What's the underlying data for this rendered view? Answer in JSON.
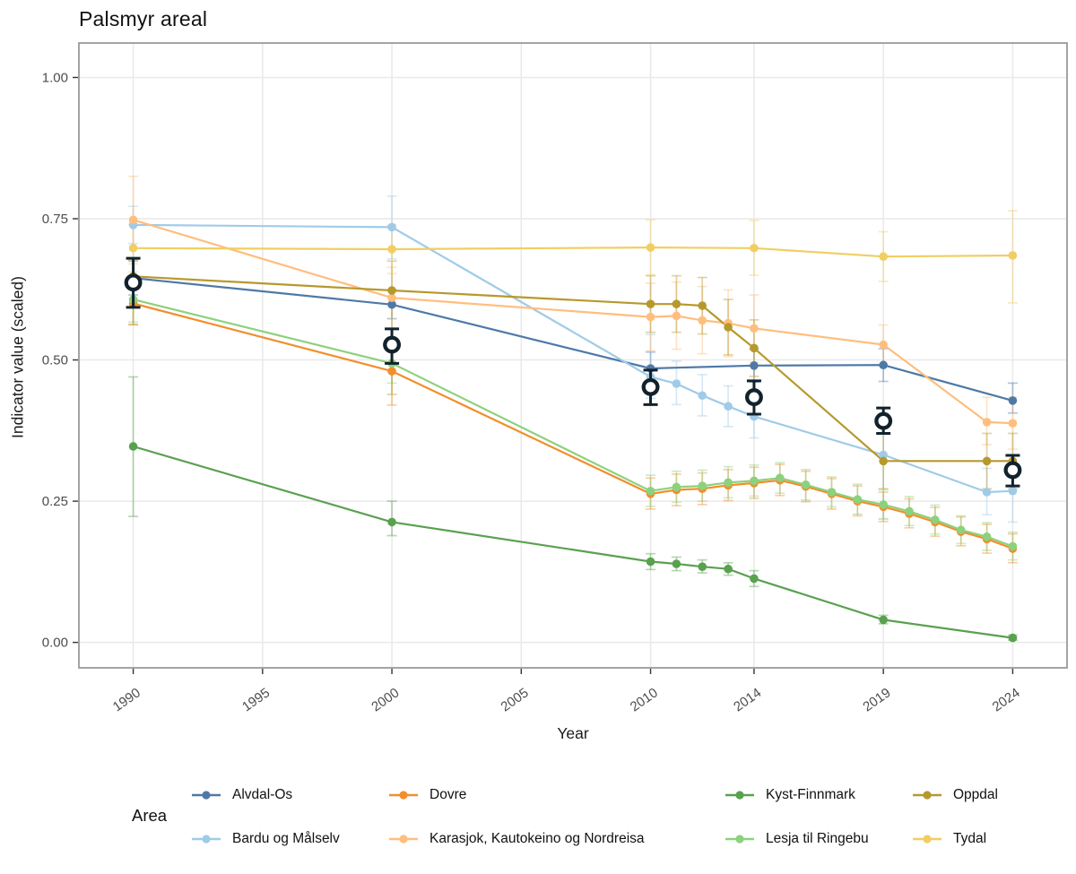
{
  "title": "Palsmyr areal",
  "chart_data": {
    "type": "line",
    "title": "Palsmyr areal",
    "xlabel": "Year",
    "ylabel": "Indicator value (scaled)",
    "legend_title": "Area",
    "legend_position": "bottom",
    "grid": true,
    "xlim": [
      1987.9,
      2026.1
    ],
    "ylim": [
      -0.045,
      1.061
    ],
    "x_tick_values": [
      1990,
      1995,
      2000,
      2005,
      2010,
      2014,
      2019,
      2024
    ],
    "x_tick_labels": [
      "1990",
      "1995",
      "2000",
      "2005",
      "2010",
      "2014",
      "2019",
      "2024"
    ],
    "y_tick_values": [
      0.0,
      0.25,
      0.5,
      0.75,
      1.0
    ],
    "y_tick_labels": [
      "0.00",
      "0.25",
      "0.50",
      "0.75",
      "1.00"
    ],
    "point_format": [
      "year",
      "value",
      "ci_low",
      "ci_high"
    ],
    "series": [
      {
        "name": "Alvdal-Os",
        "color": "#4E79A7",
        "points": [
          [
            1990,
            0.645,
            0.615,
            0.675
          ],
          [
            2000,
            0.598,
            0.573,
            0.624
          ],
          [
            2010,
            0.485,
            0.456,
            0.514
          ],
          [
            2014,
            0.49,
            0.461,
            0.519
          ],
          [
            2019,
            0.491,
            0.462,
            0.52
          ],
          [
            2024,
            0.428,
            0.406,
            0.459
          ]
        ]
      },
      {
        "name": "Bardu og Målselv",
        "color": "#A0CBE8",
        "points": [
          [
            1990,
            0.739,
            0.706,
            0.772
          ],
          [
            2000,
            0.735,
            0.679,
            0.79
          ],
          [
            2010,
            0.47,
            0.432,
            0.545
          ],
          [
            2011,
            0.458,
            0.421,
            0.498
          ],
          [
            2012,
            0.437,
            0.401,
            0.474
          ],
          [
            2013,
            0.418,
            0.382,
            0.454
          ],
          [
            2014,
            0.4,
            0.362,
            0.438
          ],
          [
            2019,
            0.332,
            0.218,
            0.392
          ],
          [
            2023,
            0.266,
            0.226,
            0.308
          ],
          [
            2024,
            0.268,
            0.213,
            0.316
          ]
        ]
      },
      {
        "name": "Dovre",
        "color": "#F28E2B",
        "points": [
          [
            1990,
            0.6,
            0.562,
            0.638
          ],
          [
            2000,
            0.48,
            0.42,
            0.54
          ],
          [
            2010,
            0.263,
            0.236,
            0.291
          ],
          [
            2011,
            0.27,
            0.242,
            0.298
          ],
          [
            2012,
            0.272,
            0.244,
            0.3
          ],
          [
            2013,
            0.278,
            0.251,
            0.306
          ],
          [
            2014,
            0.282,
            0.255,
            0.31
          ],
          [
            2015,
            0.287,
            0.26,
            0.315
          ],
          [
            2016,
            0.276,
            0.249,
            0.303
          ],
          [
            2017,
            0.263,
            0.236,
            0.29
          ],
          [
            2018,
            0.25,
            0.224,
            0.277
          ],
          [
            2019,
            0.24,
            0.214,
            0.266
          ],
          [
            2020,
            0.228,
            0.203,
            0.254
          ],
          [
            2021,
            0.213,
            0.188,
            0.239
          ],
          [
            2022,
            0.196,
            0.171,
            0.222
          ],
          [
            2023,
            0.183,
            0.158,
            0.209
          ],
          [
            2024,
            0.166,
            0.141,
            0.192
          ]
        ]
      },
      {
        "name": "Karasjok, Kautokeino og Nordreisa",
        "color": "#FFBE7D",
        "points": [
          [
            1990,
            0.748,
            0.67,
            0.825
          ],
          [
            2000,
            0.61,
            0.556,
            0.664
          ],
          [
            2010,
            0.576,
            0.516,
            0.636
          ],
          [
            2011,
            0.578,
            0.519,
            0.638
          ],
          [
            2012,
            0.57,
            0.511,
            0.63
          ],
          [
            2013,
            0.565,
            0.506,
            0.624
          ],
          [
            2014,
            0.556,
            0.496,
            0.615
          ],
          [
            2019,
            0.527,
            0.489,
            0.562
          ],
          [
            2023,
            0.39,
            0.35,
            0.434
          ],
          [
            2024,
            0.388,
            0.342,
            0.434
          ]
        ]
      },
      {
        "name": "Kyst-Finnmark",
        "color": "#59A14F",
        "points": [
          [
            1990,
            0.347,
            0.223,
            0.47
          ],
          [
            2000,
            0.213,
            0.189,
            0.25
          ],
          [
            2010,
            0.143,
            0.129,
            0.157
          ],
          [
            2011,
            0.139,
            0.127,
            0.151
          ],
          [
            2012,
            0.134,
            0.123,
            0.146
          ],
          [
            2013,
            0.13,
            0.119,
            0.141
          ],
          [
            2014,
            0.113,
            0.099,
            0.127
          ],
          [
            2019,
            0.04,
            0.033,
            0.048
          ],
          [
            2024,
            0.008,
            0.004,
            0.013
          ]
        ]
      },
      {
        "name": "Lesja til Ringebu",
        "color": "#8CD17D",
        "points": [
          [
            1990,
            0.607,
            0.567,
            0.648
          ],
          [
            2000,
            0.494,
            0.459,
            0.53
          ],
          [
            2010,
            0.268,
            0.241,
            0.296
          ],
          [
            2011,
            0.275,
            0.248,
            0.303
          ],
          [
            2012,
            0.277,
            0.25,
            0.305
          ],
          [
            2013,
            0.283,
            0.256,
            0.311
          ],
          [
            2014,
            0.286,
            0.259,
            0.314
          ],
          [
            2015,
            0.291,
            0.264,
            0.318
          ],
          [
            2016,
            0.279,
            0.252,
            0.306
          ],
          [
            2017,
            0.266,
            0.24,
            0.293
          ],
          [
            2018,
            0.253,
            0.227,
            0.28
          ],
          [
            2019,
            0.244,
            0.219,
            0.27
          ],
          [
            2020,
            0.232,
            0.207,
            0.258
          ],
          [
            2021,
            0.217,
            0.192,
            0.243
          ],
          [
            2022,
            0.199,
            0.175,
            0.224
          ],
          [
            2023,
            0.187,
            0.163,
            0.212
          ],
          [
            2024,
            0.17,
            0.146,
            0.195
          ]
        ]
      },
      {
        "name": "Oppdal",
        "color": "#B6992D",
        "points": [
          [
            1990,
            0.648,
            0.563,
            0.677
          ],
          [
            2000,
            0.623,
            0.439,
            0.675
          ],
          [
            2010,
            0.599,
            0.549,
            0.649
          ],
          [
            2011,
            0.599,
            0.549,
            0.649
          ],
          [
            2012,
            0.596,
            0.546,
            0.646
          ],
          [
            2013,
            0.558,
            0.509,
            0.607
          ],
          [
            2014,
            0.521,
            0.471,
            0.571
          ],
          [
            2019,
            0.321,
            0.272,
            0.37
          ],
          [
            2023,
            0.321,
            0.272,
            0.37
          ],
          [
            2024,
            0.321,
            0.272,
            0.37
          ]
        ]
      },
      {
        "name": "Tydal",
        "color": "#F1CE63",
        "points": [
          [
            1990,
            0.698,
            0.656,
            0.74
          ],
          [
            2000,
            0.696,
            0.653,
            0.739
          ],
          [
            2010,
            0.699,
            0.651,
            0.748
          ],
          [
            2014,
            0.698,
            0.65,
            0.747
          ],
          [
            2019,
            0.683,
            0.639,
            0.727
          ],
          [
            2024,
            0.685,
            0.601,
            0.764
          ]
        ]
      }
    ],
    "aggregate": {
      "name": "Overall indicator (open circle)",
      "color": "#12222C",
      "points": [
        [
          1990,
          0.637,
          0.593,
          0.68
        ],
        [
          2000,
          0.527,
          0.494,
          0.555
        ],
        [
          2010,
          0.452,
          0.421,
          0.482
        ],
        [
          2014,
          0.434,
          0.404,
          0.463
        ],
        [
          2019,
          0.392,
          0.37,
          0.415
        ],
        [
          2024,
          0.305,
          0.277,
          0.331
        ]
      ]
    },
    "style": {
      "grid_color": "#e9e9e9",
      "panel_border_color": "#9a9a9a",
      "tick_color": "#333333",
      "tick_label_color": "#4d4d4d"
    }
  }
}
